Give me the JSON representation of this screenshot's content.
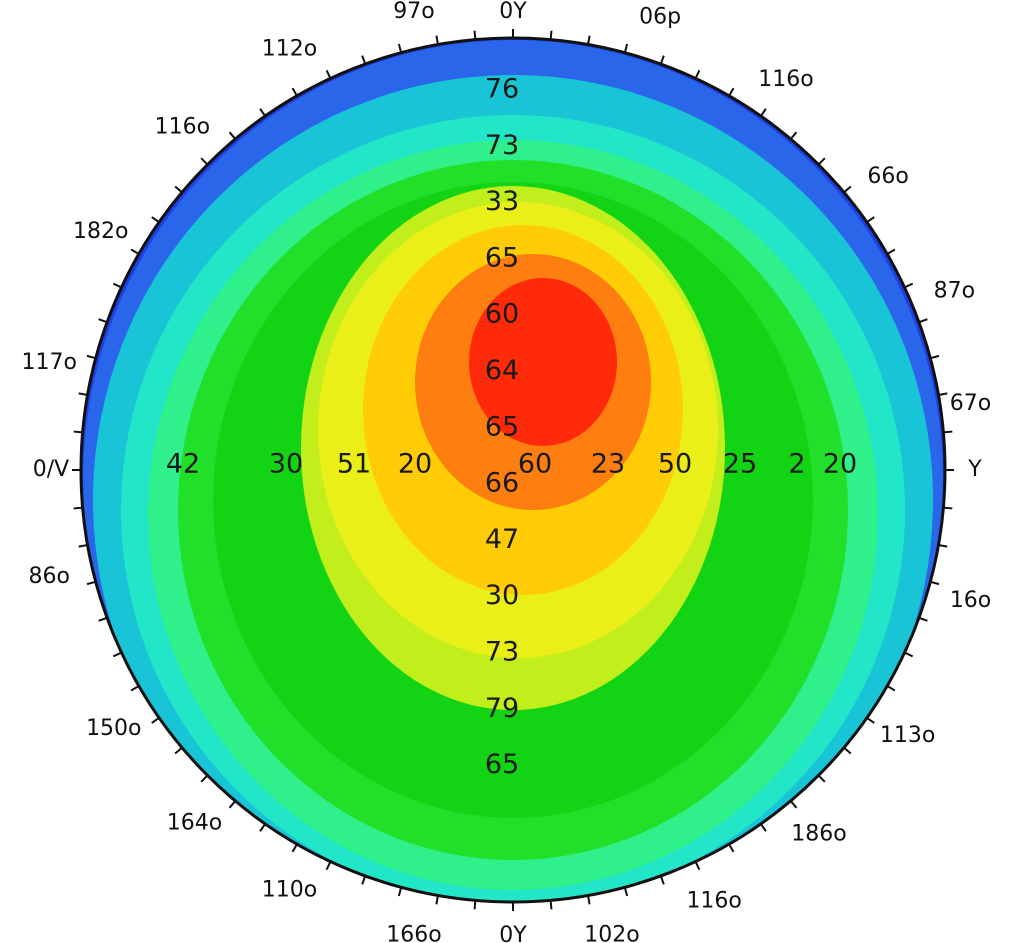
{
  "chart_data": {
    "type": "heatmap",
    "subtype": "polar-contour",
    "title": "",
    "grid": false,
    "legend": "none",
    "rim_labels": [
      {
        "angle_deg": 0,
        "text": "0Y"
      },
      {
        "angle_deg": 18,
        "text": "06p"
      },
      {
        "angle_deg": 35,
        "text": "116o"
      },
      {
        "angle_deg": 52,
        "text": "66o"
      },
      {
        "angle_deg": 68,
        "text": "87o"
      },
      {
        "angle_deg": 82,
        "text": "67o"
      },
      {
        "angle_deg": 90,
        "text": "Y"
      },
      {
        "angle_deg": 106,
        "text": "16o"
      },
      {
        "angle_deg": 124,
        "text": "113o"
      },
      {
        "angle_deg": 140,
        "text": "186o"
      },
      {
        "angle_deg": 155,
        "text": "116o"
      },
      {
        "angle_deg": 168,
        "text": "102o"
      },
      {
        "angle_deg": 180,
        "text": "0Y"
      },
      {
        "angle_deg": 192,
        "text": "166o"
      },
      {
        "angle_deg": 208,
        "text": "110o"
      },
      {
        "angle_deg": 222,
        "text": "164o"
      },
      {
        "angle_deg": 237,
        "text": "150o"
      },
      {
        "angle_deg": 257,
        "text": "86o"
      },
      {
        "angle_deg": 270,
        "text": "0/V"
      },
      {
        "angle_deg": 283,
        "text": "117o"
      },
      {
        "angle_deg": 300,
        "text": "182o"
      },
      {
        "angle_deg": 316,
        "text": "116o"
      },
      {
        "angle_deg": 332,
        "text": "112o"
      },
      {
        "angle_deg": 348,
        "text": "97o"
      }
    ],
    "vertical_labels": [
      "76",
      "73",
      "33",
      "65",
      "60",
      "64",
      "65",
      "66",
      "47",
      "30",
      "73",
      "79",
      "65"
    ],
    "horizontal_labels": [
      "42",
      "30",
      "51",
      "20",
      "60",
      "23",
      "50",
      "25",
      "2",
      "20"
    ],
    "levels": [
      {
        "level": 1,
        "color": "#1f3fe6"
      },
      {
        "level": 2,
        "color": "#2a66ea"
      },
      {
        "level": 3,
        "color": "#19c4d6"
      },
      {
        "level": 4,
        "color": "#22e6c8"
      },
      {
        "level": 5,
        "color": "#2ff08a"
      },
      {
        "level": 6,
        "color": "#22e02a"
      },
      {
        "level": 7,
        "color": "#13d414"
      },
      {
        "level": 8,
        "color": "#c2ee1c"
      },
      {
        "level": 9,
        "color": "#eaf017"
      },
      {
        "level": 10,
        "color": "#ffcc06"
      },
      {
        "level": 11,
        "color": "#ff7e10"
      },
      {
        "level": 12,
        "color": "#ff2a0a"
      }
    ]
  }
}
